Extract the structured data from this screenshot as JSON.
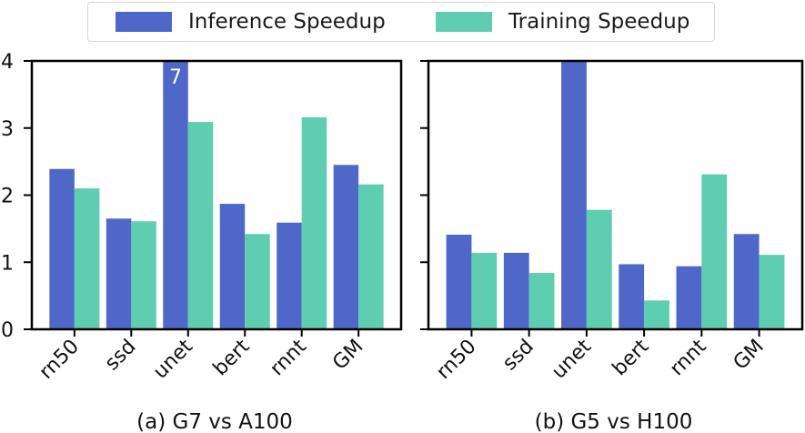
{
  "colors": {
    "inference": "#4F67C8",
    "training": "#5ECDB0"
  },
  "chart_data": [
    {
      "type": "bar",
      "title": "(a) G7 vs A100",
      "xlabel": "(a) G7 vs A100",
      "ylabel": "",
      "categories": [
        "rn50",
        "ssd",
        "unet",
        "bert",
        "rnnt",
        "GM"
      ],
      "ylim": [
        0,
        4
      ],
      "yticks": [
        "0",
        "1",
        "2",
        "3",
        "4"
      ],
      "series": [
        {
          "name": "Inference Speedup",
          "values": [
            2.39,
            1.65,
            7,
            1.87,
            1.59,
            2.45
          ]
        },
        {
          "name": "Training Speedup",
          "values": [
            2.1,
            1.61,
            3.09,
            1.42,
            3.16,
            2.16
          ]
        }
      ],
      "annotations": [
        {
          "category": "unet",
          "series": "Inference Speedup",
          "text": "7"
        }
      ],
      "legend": "top-center"
    },
    {
      "type": "bar",
      "title": "(b) G5 vs H100",
      "xlabel": "(b) G5 vs H100",
      "ylabel": "",
      "categories": [
        "rn50",
        "ssd",
        "unet",
        "bert",
        "rnnt",
        "GM"
      ],
      "ylim": [
        0,
        4
      ],
      "yticks": [],
      "series": [
        {
          "name": "Inference Speedup",
          "values": [
            1.41,
            1.14,
            4.0,
            0.97,
            0.94,
            1.42
          ]
        },
        {
          "name": "Training Speedup",
          "values": [
            1.14,
            0.84,
            1.78,
            0.43,
            2.31,
            1.11
          ]
        }
      ],
      "annotations": [],
      "legend": "top-center"
    }
  ],
  "legend": {
    "items": [
      "Inference Speedup",
      "Training Speedup"
    ]
  }
}
